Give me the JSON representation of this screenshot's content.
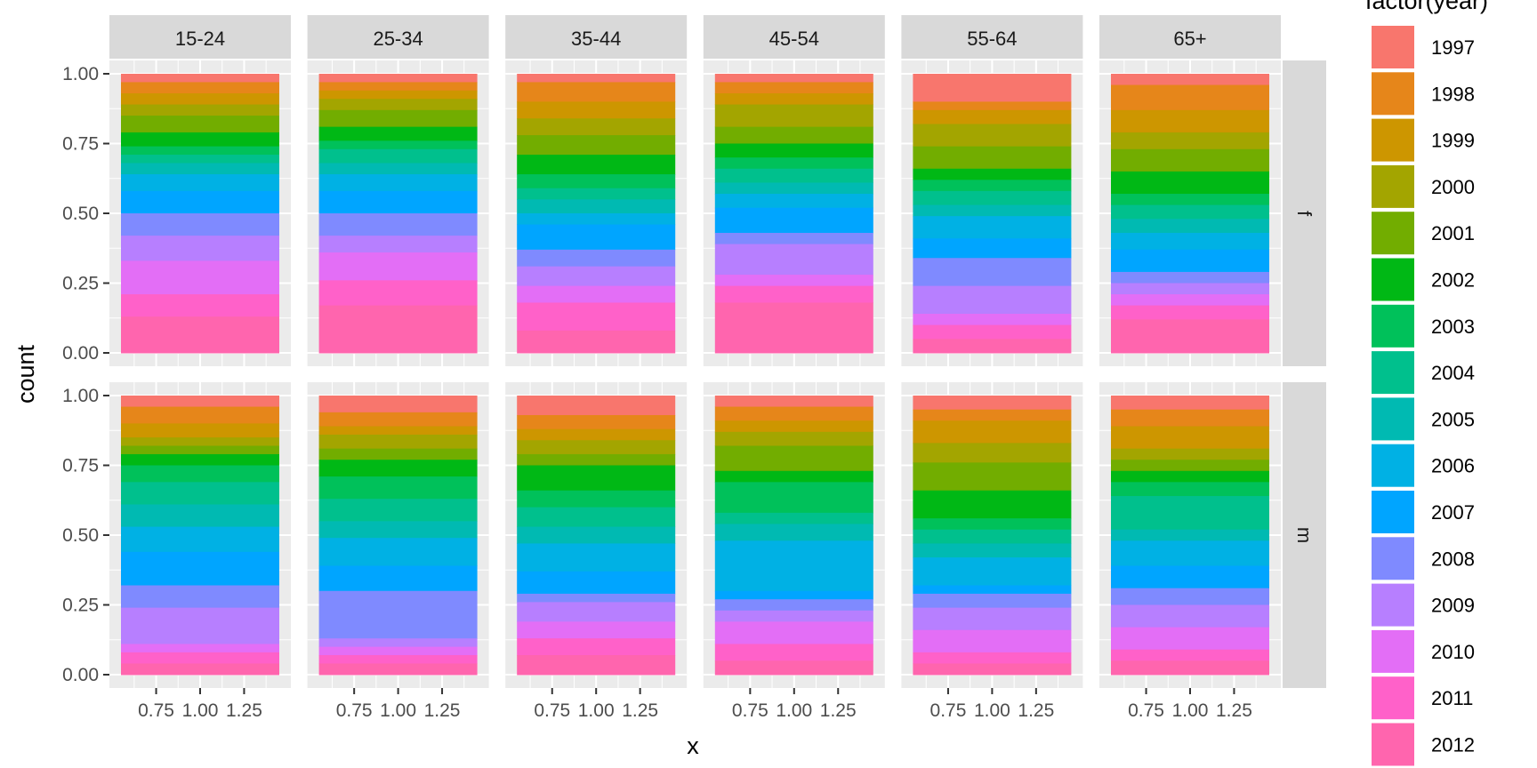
{
  "chart_data": {
    "type": "bar",
    "position": "fill",
    "xlabel": "x",
    "ylabel": "count",
    "x_tick_labels": [
      "0.75",
      "1.00",
      "1.25"
    ],
    "y_tick_labels": [
      "0.00",
      "0.25",
      "0.50",
      "0.75",
      "1.00"
    ],
    "ylim": [
      0,
      1
    ],
    "col_facets": [
      "15-24",
      "25-34",
      "35-44",
      "45-54",
      "55-64",
      "65+"
    ],
    "row_facets": [
      "f",
      "m"
    ],
    "legend": {
      "title": "factor(year)",
      "position": "right",
      "years": [
        "1997",
        "1998",
        "1999",
        "2000",
        "2001",
        "2002",
        "2003",
        "2004",
        "2005",
        "2006",
        "2007",
        "2008",
        "2009",
        "2010",
        "2011",
        "2012"
      ]
    },
    "colors": [
      "#F8766D",
      "#E6861A",
      "#CD9600",
      "#A3A500",
      "#72AD00",
      "#00B815",
      "#00C15A",
      "#00C08D",
      "#00BAB2",
      "#00B1E4",
      "#00A5FF",
      "#7F8AFF",
      "#B77FFF",
      "#E36EF6",
      "#FF61C9",
      "#FF65AE"
    ],
    "panels": [
      {
        "row": "f",
        "col": "15-24",
        "proportions": [
          0.03,
          0.04,
          0.04,
          0.04,
          0.06,
          0.05,
          0.03,
          0.03,
          0.04,
          0.06,
          0.08,
          0.08,
          0.09,
          0.12,
          0.08,
          0.13
        ]
      },
      {
        "row": "f",
        "col": "25-34",
        "proportions": [
          0.03,
          0.03,
          0.03,
          0.04,
          0.06,
          0.05,
          0.03,
          0.05,
          0.04,
          0.06,
          0.08,
          0.08,
          0.06,
          0.1,
          0.09,
          0.17
        ]
      },
      {
        "row": "f",
        "col": "35-44",
        "proportions": [
          0.03,
          0.07,
          0.06,
          0.06,
          0.07,
          0.07,
          0.05,
          0.04,
          0.05,
          0.04,
          0.09,
          0.06,
          0.07,
          0.06,
          0.1,
          0.08
        ]
      },
      {
        "row": "f",
        "col": "45-54",
        "proportions": [
          0.03,
          0.04,
          0.04,
          0.08,
          0.06,
          0.05,
          0.04,
          0.05,
          0.04,
          0.05,
          0.09,
          0.04,
          0.11,
          0.04,
          0.06,
          0.18
        ]
      },
      {
        "row": "f",
        "col": "55-64",
        "proportions": [
          0.1,
          0.03,
          0.05,
          0.08,
          0.08,
          0.04,
          0.04,
          0.05,
          0.04,
          0.08,
          0.07,
          0.1,
          0.1,
          0.04,
          0.05,
          0.05
        ]
      },
      {
        "row": "f",
        "col": "65+",
        "proportions": [
          0.04,
          0.09,
          0.08,
          0.06,
          0.08,
          0.08,
          0.04,
          0.05,
          0.05,
          0.06,
          0.08,
          0.04,
          0.04,
          0.04,
          0.05,
          0.12
        ]
      }
    ]
  }
}
